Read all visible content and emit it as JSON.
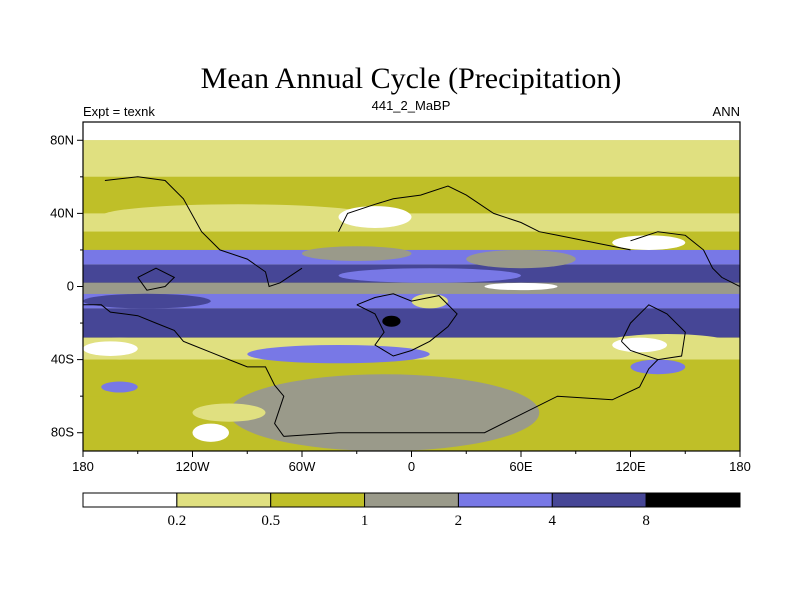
{
  "chart_data": {
    "type": "heatmap",
    "title": "Mean Annual Cycle (Precipitation)",
    "left_label": "Expt = texnk",
    "center_label": "441_2_MaBP",
    "right_label": "ANN",
    "x_ticks": [
      "180",
      "120W",
      "60W",
      "0",
      "60E",
      "120E",
      "180"
    ],
    "x_tick_values": [
      -180,
      -120,
      -60,
      0,
      60,
      120,
      180
    ],
    "y_ticks": [
      "80N",
      "40N",
      "0",
      "40S",
      "80S"
    ],
    "y_tick_values": [
      80,
      40,
      0,
      -40,
      -80
    ],
    "xlim": [
      -180,
      180
    ],
    "ylim": [
      -90,
      90
    ],
    "levels": [
      "0.2",
      "0.5",
      "1",
      "2",
      "4",
      "8"
    ],
    "level_values": [
      0.2,
      0.5,
      1,
      2,
      4,
      8
    ],
    "colors": [
      "#ffffff",
      "#e0e080",
      "#bfbf28",
      "#9a9a8a",
      "#7878e6",
      "#464696",
      "#000000"
    ],
    "bands": [
      {
        "lat": [
          90,
          80
        ],
        "class": 0
      },
      {
        "lat": [
          80,
          60
        ],
        "class": 1
      },
      {
        "lat": [
          60,
          40
        ],
        "class": 2
      },
      {
        "lat": [
          40,
          30
        ],
        "class": 1
      },
      {
        "lat": [
          30,
          20
        ],
        "class": 2
      },
      {
        "lat": [
          20,
          12
        ],
        "class": 4
      },
      {
        "lat": [
          12,
          2
        ],
        "class": 5
      },
      {
        "lat": [
          2,
          -4
        ],
        "class": 3
      },
      {
        "lat": [
          -4,
          -12
        ],
        "class": 4
      },
      {
        "lat": [
          -12,
          -28
        ],
        "class": 5
      },
      {
        "lat": [
          -28,
          -40
        ],
        "class": 1
      },
      {
        "lat": [
          -40,
          -50
        ],
        "class": 2
      },
      {
        "lat": [
          -50,
          -60
        ],
        "class": 2
      },
      {
        "lat": [
          -60,
          -90
        ],
        "class": 2
      }
    ],
    "patches": [
      {
        "lon": [
          -170,
          -20
        ],
        "lat": [
          45,
          32
        ],
        "class": 1
      },
      {
        "lon": [
          -40,
          0
        ],
        "lat": [
          44,
          32
        ],
        "class": 0
      },
      {
        "lon": [
          110,
          150
        ],
        "lat": [
          28,
          20
        ],
        "class": 0
      },
      {
        "lon": [
          -60,
          0
        ],
        "lat": [
          22,
          14
        ],
        "class": 3
      },
      {
        "lon": [
          30,
          90
        ],
        "lat": [
          20,
          10
        ],
        "class": 3
      },
      {
        "lon": [
          -40,
          60
        ],
        "lat": [
          10,
          2
        ],
        "class": 4
      },
      {
        "lon": [
          40,
          80
        ],
        "lat": [
          2,
          -2
        ],
        "class": 0
      },
      {
        "lon": [
          -180,
          -110
        ],
        "lat": [
          -4,
          -12
        ],
        "class": 5
      },
      {
        "lon": [
          0,
          20
        ],
        "lat": [
          -4,
          -12
        ],
        "class": 1
      },
      {
        "lon": [
          -16,
          -6
        ],
        "lat": [
          -16,
          -22
        ],
        "class": 6
      },
      {
        "lon": [
          100,
          180
        ],
        "lat": [
          -26,
          -40
        ],
        "class": 1
      },
      {
        "lon": [
          110,
          140
        ],
        "lat": [
          -28,
          -36
        ],
        "class": 0
      },
      {
        "lon": [
          -180,
          -140
        ],
        "lat": [
          -28,
          -40
        ],
        "class": 1
      },
      {
        "lon": [
          -180,
          -150
        ],
        "lat": [
          -30,
          -38
        ],
        "class": 0
      },
      {
        "lon": [
          -90,
          10
        ],
        "lat": [
          -32,
          -42
        ],
        "class": 4
      },
      {
        "lon": [
          120,
          150
        ],
        "lat": [
          -40,
          -48
        ],
        "class": 4
      },
      {
        "lon": [
          -170,
          -150
        ],
        "lat": [
          -52,
          -58
        ],
        "class": 4
      },
      {
        "lon": [
          -100,
          70
        ],
        "lat": [
          -48,
          -90
        ],
        "class": 3
      },
      {
        "lon": [
          -120,
          -80
        ],
        "lat": [
          -64,
          -74
        ],
        "class": 1
      },
      {
        "lon": [
          -120,
          -100
        ],
        "lat": [
          -75,
          -85
        ],
        "class": 0
      }
    ],
    "coastlines": [
      [
        [
          -168,
          58
        ],
        [
          -150,
          60
        ],
        [
          -135,
          58
        ],
        [
          -125,
          48
        ],
        [
          -115,
          30
        ],
        [
          -105,
          20
        ],
        [
          -90,
          15
        ],
        [
          -80,
          8
        ],
        [
          -78,
          0
        ],
        [
          -72,
          2
        ],
        [
          -60,
          10
        ]
      ],
      [
        [
          -180,
          -10
        ],
        [
          -170,
          -10
        ],
        [
          -165,
          -14
        ],
        [
          -150,
          -16
        ],
        [
          -140,
          -20
        ],
        [
          -130,
          -24
        ],
        [
          -125,
          -30
        ],
        [
          -120,
          -32
        ],
        [
          -110,
          -36
        ],
        [
          -100,
          -40
        ],
        [
          -90,
          -44
        ],
        [
          -80,
          -44
        ],
        [
          -75,
          -54
        ],
        [
          -70,
          -60
        ],
        [
          -75,
          -75
        ],
        [
          -70,
          -82
        ]
      ],
      [
        [
          -40,
          30
        ],
        [
          -35,
          40
        ],
        [
          -20,
          45
        ],
        [
          -10,
          48
        ],
        [
          5,
          50
        ],
        [
          20,
          55
        ],
        [
          30,
          50
        ],
        [
          45,
          40
        ],
        [
          60,
          35
        ],
        [
          70,
          30
        ],
        [
          80,
          28
        ],
        [
          95,
          25
        ],
        [
          110,
          22
        ],
        [
          120,
          20
        ]
      ],
      [
        [
          -30,
          -10
        ],
        [
          -20,
          -15
        ],
        [
          -15,
          -25
        ],
        [
          -20,
          -32
        ],
        [
          -10,
          -38
        ],
        [
          0,
          -35
        ],
        [
          10,
          -30
        ],
        [
          20,
          -22
        ],
        [
          25,
          -15
        ],
        [
          15,
          -5
        ],
        [
          0,
          -8
        ],
        [
          -10,
          -4
        ],
        [
          -20,
          -6
        ],
        [
          -30,
          -10
        ]
      ],
      [
        [
          -70,
          -82
        ],
        [
          -40,
          -80
        ],
        [
          0,
          -80
        ],
        [
          40,
          -80
        ],
        [
          60,
          -70
        ],
        [
          80,
          -60
        ],
        [
          110,
          -62
        ],
        [
          125,
          -55
        ],
        [
          130,
          -45
        ],
        [
          135,
          -40
        ]
      ],
      [
        [
          115,
          -30
        ],
        [
          120,
          -20
        ],
        [
          130,
          -10
        ],
        [
          140,
          -15
        ],
        [
          150,
          -25
        ],
        [
          148,
          -38
        ],
        [
          135,
          -40
        ],
        [
          120,
          -35
        ],
        [
          115,
          -30
        ]
      ],
      [
        [
          -150,
          5
        ],
        [
          -140,
          10
        ],
        [
          -130,
          5
        ],
        [
          -135,
          0
        ],
        [
          -145,
          -2
        ],
        [
          -150,
          5
        ]
      ],
      [
        [
          120,
          25
        ],
        [
          135,
          30
        ],
        [
          150,
          28
        ],
        [
          160,
          20
        ],
        [
          165,
          10
        ],
        [
          170,
          5
        ],
        [
          180,
          0
        ]
      ]
    ]
  }
}
